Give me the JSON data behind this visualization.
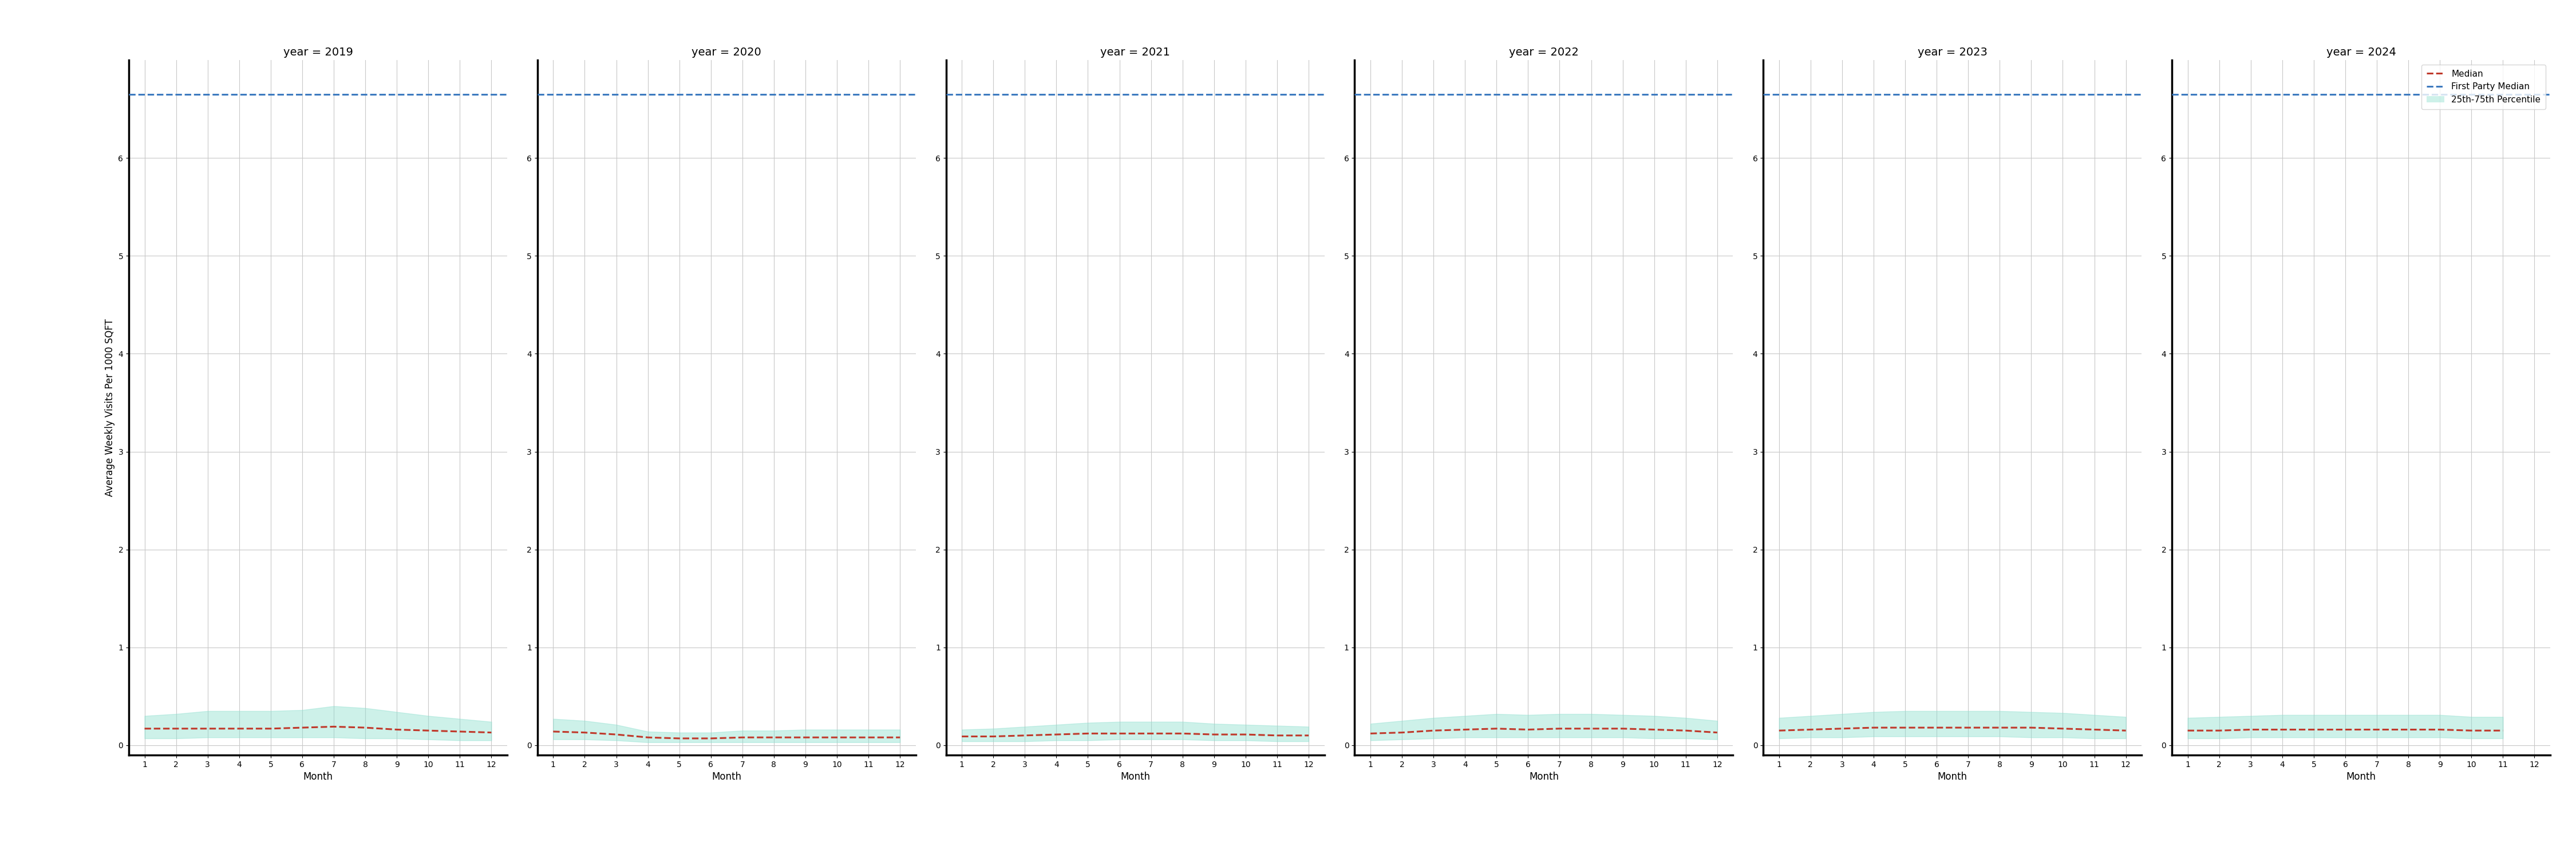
{
  "years": [
    2019,
    2020,
    2021,
    2022,
    2023,
    2024
  ],
  "months": [
    1,
    2,
    3,
    4,
    5,
    6,
    7,
    8,
    9,
    10,
    11,
    12
  ],
  "first_party_median": 6.65,
  "median_by_year": {
    "2019": [
      0.17,
      0.17,
      0.17,
      0.17,
      0.17,
      0.18,
      0.19,
      0.18,
      0.16,
      0.15,
      0.14,
      0.13
    ],
    "2020": [
      0.14,
      0.13,
      0.11,
      0.08,
      0.07,
      0.07,
      0.08,
      0.08,
      0.08,
      0.08,
      0.08,
      0.08
    ],
    "2021": [
      0.09,
      0.09,
      0.1,
      0.11,
      0.12,
      0.12,
      0.12,
      0.12,
      0.11,
      0.11,
      0.1,
      0.1
    ],
    "2022": [
      0.12,
      0.13,
      0.15,
      0.16,
      0.17,
      0.16,
      0.17,
      0.17,
      0.17,
      0.16,
      0.15,
      0.13
    ],
    "2023": [
      0.15,
      0.16,
      0.17,
      0.18,
      0.18,
      0.18,
      0.18,
      0.18,
      0.18,
      0.17,
      0.16,
      0.15
    ],
    "2024": [
      0.15,
      0.15,
      0.16,
      0.16,
      0.16,
      0.16,
      0.16,
      0.16,
      0.16,
      0.15,
      0.15,
      null
    ]
  },
  "p25_by_year": {
    "2019": [
      0.07,
      0.07,
      0.08,
      0.08,
      0.08,
      0.08,
      0.08,
      0.07,
      0.07,
      0.06,
      0.05,
      0.05
    ],
    "2020": [
      0.06,
      0.06,
      0.05,
      0.03,
      0.03,
      0.03,
      0.03,
      0.03,
      0.03,
      0.03,
      0.03,
      0.03
    ],
    "2021": [
      0.04,
      0.04,
      0.04,
      0.05,
      0.05,
      0.06,
      0.06,
      0.06,
      0.05,
      0.05,
      0.04,
      0.04
    ],
    "2022": [
      0.05,
      0.06,
      0.07,
      0.08,
      0.08,
      0.08,
      0.08,
      0.08,
      0.08,
      0.07,
      0.07,
      0.06
    ],
    "2023": [
      0.07,
      0.08,
      0.08,
      0.09,
      0.09,
      0.09,
      0.09,
      0.09,
      0.08,
      0.08,
      0.07,
      0.07
    ],
    "2024": [
      0.07,
      0.07,
      0.08,
      0.08,
      0.08,
      0.08,
      0.08,
      0.08,
      0.08,
      0.07,
      0.07,
      null
    ]
  },
  "p75_by_year": {
    "2019": [
      0.3,
      0.32,
      0.35,
      0.35,
      0.35,
      0.36,
      0.4,
      0.38,
      0.34,
      0.3,
      0.27,
      0.24
    ],
    "2020": [
      0.27,
      0.25,
      0.21,
      0.14,
      0.13,
      0.13,
      0.15,
      0.15,
      0.16,
      0.16,
      0.16,
      0.16
    ],
    "2021": [
      0.16,
      0.17,
      0.19,
      0.21,
      0.23,
      0.24,
      0.24,
      0.24,
      0.22,
      0.21,
      0.2,
      0.19
    ],
    "2022": [
      0.22,
      0.25,
      0.28,
      0.3,
      0.32,
      0.31,
      0.32,
      0.32,
      0.31,
      0.3,
      0.28,
      0.25
    ],
    "2023": [
      0.28,
      0.3,
      0.32,
      0.34,
      0.35,
      0.35,
      0.35,
      0.35,
      0.34,
      0.33,
      0.31,
      0.29
    ],
    "2024": [
      0.28,
      0.29,
      0.3,
      0.31,
      0.31,
      0.31,
      0.31,
      0.31,
      0.31,
      0.29,
      0.29,
      null
    ]
  },
  "ylim": [
    -0.1,
    7.0
  ],
  "yticks": [
    0,
    1,
    2,
    3,
    4,
    5,
    6
  ],
  "ylabel": "Average Weekly Visits Per 1000 SQFT",
  "xlabel": "Month",
  "median_color": "#c0392b",
  "first_party_color": "#3d7abf",
  "fill_color": "#90e0d0",
  "fill_alpha": 0.45,
  "grid_color": "#c8c8c8",
  "legend_labels": [
    "Median",
    "First Party Median",
    "25th-75th Percentile"
  ],
  "title_prefix": "year = ",
  "title_fontsize": 14,
  "label_fontsize": 12,
  "tick_fontsize": 10
}
